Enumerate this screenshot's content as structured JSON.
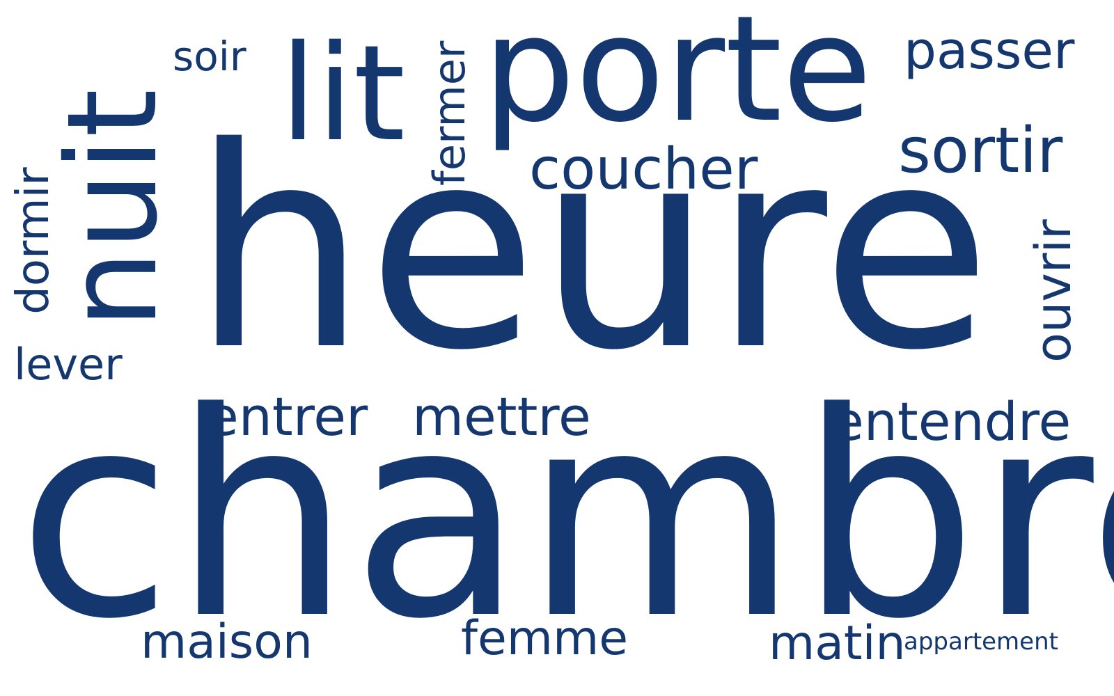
{
  "colors": {
    "text": "#14376f",
    "background": "#ffffff"
  },
  "words": {
    "heure": "heure",
    "chambre": "chambre",
    "porte": "porte",
    "nuit": "nuit",
    "lit": "lit",
    "soir": "soir",
    "fermer": "fermer",
    "couche": "coucher",
    "passer": "passer",
    "sortir": "sortir",
    "dormir": "dormir",
    "lever": "lever",
    "ouvrir": "ouvrir",
    "entrer": "entrer",
    "mettre": "mettre",
    "entendre": "entendre",
    "maison": "maison",
    "femme": "femme",
    "matin": "matin",
    "appartement": "appartement"
  }
}
